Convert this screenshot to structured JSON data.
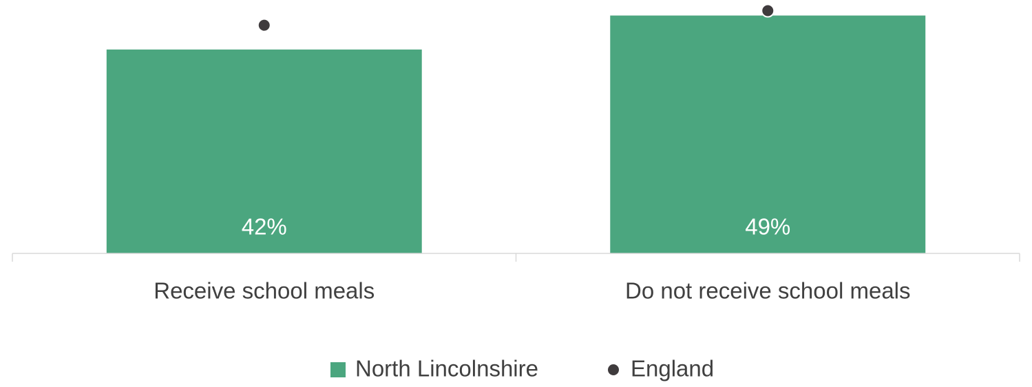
{
  "chart_data": {
    "type": "bar",
    "categories": [
      "Receive school meals",
      "Do not receive school meals"
    ],
    "series": [
      {
        "name": "North Lincolnshire",
        "type": "bar",
        "color": "#4ba67f",
        "values": [
          42,
          49
        ],
        "value_labels": [
          "42%",
          "49%"
        ]
      },
      {
        "name": "England",
        "type": "dot",
        "color": "#3f3b3d",
        "values": [
          47,
          50
        ]
      }
    ],
    "ylim": [
      0,
      52
    ],
    "legend": "bottom"
  }
}
